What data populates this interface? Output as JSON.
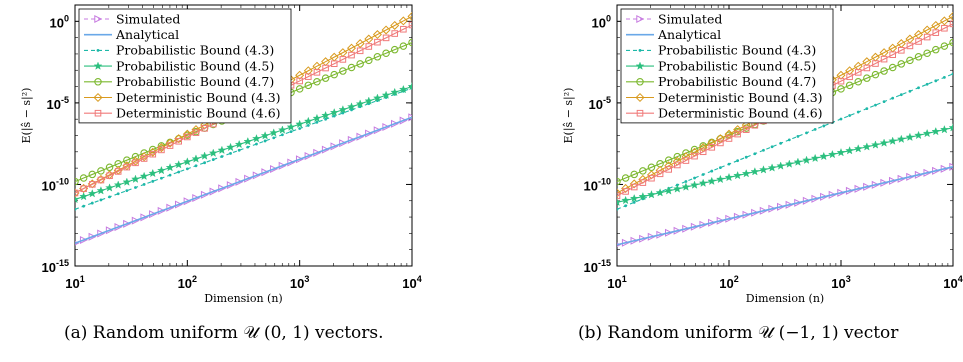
{
  "chart_data": [
    {
      "type": "line",
      "panel": "a",
      "xlabel": "Dimension (n)",
      "ylabel": "E(|ŝ − s|²)",
      "xscale": "log",
      "yscale": "log",
      "xlim": [
        10,
        10000
      ],
      "ylim": [
        1e-15,
        10
      ],
      "x_ticks": [
        {
          "base": "10",
          "exp": "1"
        },
        {
          "base": "10",
          "exp": "2"
        },
        {
          "base": "10",
          "exp": "3"
        },
        {
          "base": "10",
          "exp": "4"
        }
      ],
      "y_ticks": [
        {
          "base": "10",
          "exp": "-15"
        },
        {
          "base": "10",
          "exp": "-10"
        },
        {
          "base": "10",
          "exp": "-5"
        },
        {
          "base": "10",
          "exp": "0"
        }
      ],
      "legend_position": "top-left",
      "series": [
        {
          "name": "Simulated",
          "color": "#c77be0",
          "marker": "triangle-right",
          "line": "dashed",
          "x": [
            10,
            10000
          ],
          "y": [
            2.5e-14,
            1.3e-06
          ]
        },
        {
          "name": "Analytical",
          "color": "#6aa8e8",
          "marker": "none",
          "line": "solid",
          "x": [
            10,
            10000
          ],
          "y": [
            2.5e-14,
            1.3e-06
          ]
        },
        {
          "name": "Probabilistic Bound (4.3)",
          "color": "#1db8a8",
          "marker": "dot",
          "line": "dashed",
          "x": [
            10,
            10000
          ],
          "y": [
            3e-12,
            8e-05
          ]
        },
        {
          "name": "Probabilistic Bound (4.5)",
          "color": "#2bbf7e",
          "marker": "star",
          "line": "solid",
          "x": [
            10,
            10000
          ],
          "y": [
            1.2e-11,
            0.0001
          ]
        },
        {
          "name": "Probabilistic Bound (4.7)",
          "color": "#7cb82f",
          "marker": "circle",
          "line": "solid",
          "x": [
            10,
            10000
          ],
          "y": [
            1.5e-10,
            0.05
          ]
        },
        {
          "name": "Deterministic Bound (4.3)",
          "color": "#d99a1e",
          "marker": "diamond",
          "line": "solid",
          "x": [
            10,
            10000
          ],
          "y": [
            3e-11,
            2
          ]
        },
        {
          "name": "Deterministic Bound (4.6)",
          "color": "#f07a7a",
          "marker": "square",
          "line": "solid",
          "x": [
            10,
            10000
          ],
          "y": [
            3e-11,
            0.6
          ]
        }
      ]
    },
    {
      "type": "line",
      "panel": "b",
      "xlabel": "Dimension (n)",
      "ylabel": "E(|ŝ − s|²)",
      "xscale": "log",
      "yscale": "log",
      "xlim": [
        10,
        10000
      ],
      "ylim": [
        1e-15,
        10
      ],
      "x_ticks": [
        {
          "base": "10",
          "exp": "1"
        },
        {
          "base": "10",
          "exp": "2"
        },
        {
          "base": "10",
          "exp": "3"
        },
        {
          "base": "10",
          "exp": "4"
        }
      ],
      "y_ticks": [
        {
          "base": "10",
          "exp": "-15"
        },
        {
          "base": "10",
          "exp": "-10"
        },
        {
          "base": "10",
          "exp": "-5"
        },
        {
          "base": "10",
          "exp": "0"
        }
      ],
      "legend_position": "top-left",
      "series": [
        {
          "name": "Simulated",
          "color": "#c77be0",
          "marker": "triangle-right",
          "line": "dashed",
          "x": [
            10,
            10000
          ],
          "y": [
            2e-14,
            1.2e-09
          ]
        },
        {
          "name": "Analytical",
          "color": "#6aa8e8",
          "marker": "none",
          "line": "solid",
          "x": [
            10,
            10000
          ],
          "y": [
            2e-14,
            1.2e-09
          ]
        },
        {
          "name": "Probabilistic Bound (4.3)",
          "color": "#1db8a8",
          "marker": "dot",
          "line": "dashed",
          "x": [
            10,
            10000
          ],
          "y": [
            3e-12,
            0.0006
          ]
        },
        {
          "name": "Probabilistic Bound (4.5)",
          "color": "#2bbf7e",
          "marker": "star",
          "line": "solid",
          "x": [
            10,
            10000
          ],
          "y": [
            8e-12,
            3e-07
          ]
        },
        {
          "name": "Probabilistic Bound (4.7)",
          "color": "#7cb82f",
          "marker": "circle",
          "line": "solid",
          "x": [
            10,
            10000
          ],
          "y": [
            1.5e-10,
            0.05
          ]
        },
        {
          "name": "Deterministic Bound (4.3)",
          "color": "#d99a1e",
          "marker": "diamond",
          "line": "solid",
          "x": [
            10,
            10000
          ],
          "y": [
            3e-11,
            2
          ]
        },
        {
          "name": "Deterministic Bound (4.6)",
          "color": "#f07a7a",
          "marker": "square",
          "line": "solid",
          "x": [
            10,
            10000
          ],
          "y": [
            2e-11,
            0.7
          ]
        }
      ]
    }
  ],
  "captions": {
    "a": "(a) Random uniform 𝒰 (0, 1) vectors.",
    "b": "(b) Random uniform 𝒰 (−1, 1) vector"
  }
}
